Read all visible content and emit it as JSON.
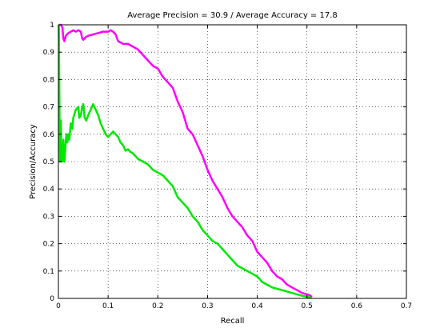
{
  "chart_data": {
    "type": "line",
    "title": "Average Precision = 30.9 / Average Accuracy = 17.8",
    "xlabel": "Recall",
    "ylabel": "Precision/Accuracy",
    "xlim": [
      0,
      0.7
    ],
    "ylim": [
      0,
      1
    ],
    "xticks": [
      "0",
      "0.1",
      "0.2",
      "0.3",
      "0.4",
      "0.5",
      "0.6",
      "0.7"
    ],
    "yticks": [
      "0",
      "0.1",
      "0.2",
      "0.3",
      "0.4",
      "0.5",
      "0.6",
      "0.7",
      "0.8",
      "0.9",
      "1"
    ],
    "grid": true,
    "grid_style": "dotted",
    "series": [
      {
        "color": "#ff00ff",
        "points": [
          [
            0.002,
            1.0
          ],
          [
            0.005,
            1.0
          ],
          [
            0.008,
            0.99
          ],
          [
            0.01,
            0.95
          ],
          [
            0.012,
            0.94
          ],
          [
            0.015,
            0.96
          ],
          [
            0.02,
            0.97
          ],
          [
            0.025,
            0.975
          ],
          [
            0.03,
            0.98
          ],
          [
            0.035,
            0.975
          ],
          [
            0.04,
            0.98
          ],
          [
            0.045,
            0.975
          ],
          [
            0.048,
            0.95
          ],
          [
            0.05,
            0.945
          ],
          [
            0.055,
            0.955
          ],
          [
            0.06,
            0.96
          ],
          [
            0.07,
            0.965
          ],
          [
            0.08,
            0.97
          ],
          [
            0.09,
            0.975
          ],
          [
            0.1,
            0.975
          ],
          [
            0.105,
            0.98
          ],
          [
            0.11,
            0.975
          ],
          [
            0.115,
            0.965
          ],
          [
            0.12,
            0.94
          ],
          [
            0.13,
            0.93
          ],
          [
            0.14,
            0.93
          ],
          [
            0.15,
            0.92
          ],
          [
            0.16,
            0.91
          ],
          [
            0.17,
            0.89
          ],
          [
            0.18,
            0.87
          ],
          [
            0.19,
            0.85
          ],
          [
            0.2,
            0.84
          ],
          [
            0.21,
            0.81
          ],
          [
            0.22,
            0.79
          ],
          [
            0.23,
            0.77
          ],
          [
            0.24,
            0.72
          ],
          [
            0.25,
            0.68
          ],
          [
            0.26,
            0.62
          ],
          [
            0.27,
            0.6
          ],
          [
            0.28,
            0.56
          ],
          [
            0.29,
            0.52
          ],
          [
            0.3,
            0.47
          ],
          [
            0.31,
            0.43
          ],
          [
            0.32,
            0.4
          ],
          [
            0.33,
            0.37
          ],
          [
            0.34,
            0.33
          ],
          [
            0.35,
            0.3
          ],
          [
            0.36,
            0.28
          ],
          [
            0.37,
            0.26
          ],
          [
            0.38,
            0.23
          ],
          [
            0.39,
            0.21
          ],
          [
            0.4,
            0.17
          ],
          [
            0.41,
            0.15
          ],
          [
            0.42,
            0.13
          ],
          [
            0.43,
            0.1
          ],
          [
            0.44,
            0.08
          ],
          [
            0.45,
            0.07
          ],
          [
            0.46,
            0.05
          ],
          [
            0.47,
            0.04
          ],
          [
            0.48,
            0.03
          ],
          [
            0.49,
            0.02
          ],
          [
            0.5,
            0.015
          ],
          [
            0.505,
            0.012
          ],
          [
            0.51,
            0.005
          ]
        ]
      },
      {
        "color": "#00e800",
        "points": [
          [
            0.001,
            1.0
          ],
          [
            0.002,
            0.75
          ],
          [
            0.003,
            0.5
          ],
          [
            0.004,
            0.6
          ],
          [
            0.005,
            0.65
          ],
          [
            0.006,
            0.5
          ],
          [
            0.007,
            0.55
          ],
          [
            0.008,
            0.5
          ],
          [
            0.01,
            0.58
          ],
          [
            0.012,
            0.5
          ],
          [
            0.014,
            0.55
          ],
          [
            0.016,
            0.6
          ],
          [
            0.018,
            0.57
          ],
          [
            0.02,
            0.6
          ],
          [
            0.022,
            0.58
          ],
          [
            0.025,
            0.64
          ],
          [
            0.028,
            0.62
          ],
          [
            0.03,
            0.66
          ],
          [
            0.035,
            0.69
          ],
          [
            0.04,
            0.7
          ],
          [
            0.042,
            0.66
          ],
          [
            0.045,
            0.67
          ],
          [
            0.048,
            0.7
          ],
          [
            0.05,
            0.71
          ],
          [
            0.053,
            0.66
          ],
          [
            0.056,
            0.65
          ],
          [
            0.06,
            0.67
          ],
          [
            0.065,
            0.69
          ],
          [
            0.07,
            0.71
          ],
          [
            0.075,
            0.69
          ],
          [
            0.08,
            0.67
          ],
          [
            0.085,
            0.64
          ],
          [
            0.09,
            0.62
          ],
          [
            0.095,
            0.6
          ],
          [
            0.1,
            0.59
          ],
          [
            0.105,
            0.6
          ],
          [
            0.11,
            0.61
          ],
          [
            0.115,
            0.6
          ],
          [
            0.12,
            0.59
          ],
          [
            0.125,
            0.57
          ],
          [
            0.13,
            0.56
          ],
          [
            0.135,
            0.54
          ],
          [
            0.14,
            0.545
          ],
          [
            0.145,
            0.535
          ],
          [
            0.15,
            0.53
          ],
          [
            0.16,
            0.51
          ],
          [
            0.17,
            0.5
          ],
          [
            0.18,
            0.49
          ],
          [
            0.19,
            0.47
          ],
          [
            0.2,
            0.46
          ],
          [
            0.21,
            0.45
          ],
          [
            0.22,
            0.43
          ],
          [
            0.23,
            0.41
          ],
          [
            0.24,
            0.37
          ],
          [
            0.25,
            0.35
          ],
          [
            0.26,
            0.33
          ],
          [
            0.27,
            0.3
          ],
          [
            0.28,
            0.28
          ],
          [
            0.29,
            0.25
          ],
          [
            0.3,
            0.23
          ],
          [
            0.31,
            0.21
          ],
          [
            0.32,
            0.2
          ],
          [
            0.33,
            0.18
          ],
          [
            0.34,
            0.16
          ],
          [
            0.35,
            0.14
          ],
          [
            0.36,
            0.12
          ],
          [
            0.37,
            0.11
          ],
          [
            0.38,
            0.1
          ],
          [
            0.39,
            0.09
          ],
          [
            0.4,
            0.08
          ],
          [
            0.41,
            0.06
          ],
          [
            0.42,
            0.05
          ],
          [
            0.43,
            0.04
          ],
          [
            0.44,
            0.035
          ],
          [
            0.45,
            0.03
          ],
          [
            0.46,
            0.025
          ],
          [
            0.47,
            0.02
          ],
          [
            0.48,
            0.015
          ],
          [
            0.49,
            0.01
          ],
          [
            0.5,
            0.006
          ],
          [
            0.51,
            0.002
          ]
        ]
      }
    ]
  }
}
